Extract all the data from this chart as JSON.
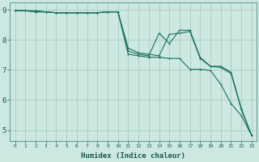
{
  "title": "",
  "xlabel": "Humidex (Indice chaleur)",
  "ylabel": "",
  "background_color": "#cce8e0",
  "grid_color": "#aaccC4",
  "line_color": "#1a7060",
  "xlim": [
    -0.5,
    23.5
  ],
  "ylim": [
    4.65,
    9.25
  ],
  "xticks": [
    0,
    1,
    2,
    3,
    4,
    5,
    6,
    7,
    8,
    9,
    10,
    11,
    12,
    13,
    14,
    15,
    16,
    17,
    18,
    19,
    20,
    21,
    22,
    23
  ],
  "yticks": [
    5,
    6,
    7,
    8,
    9
  ],
  "line1_x": [
    0,
    1,
    2,
    3,
    4,
    5,
    6,
    7,
    8,
    9,
    10,
    11,
    12,
    13,
    14,
    15,
    16,
    17,
    18,
    19,
    20,
    21,
    22,
    23
  ],
  "line1_y": [
    8.97,
    8.97,
    8.93,
    8.93,
    8.9,
    8.9,
    8.9,
    8.9,
    8.9,
    8.93,
    8.93,
    7.52,
    7.47,
    7.42,
    7.42,
    7.38,
    7.38,
    7.02,
    7.02,
    6.98,
    6.52,
    5.88,
    5.48,
    4.82
  ],
  "line2_x": [
    0,
    1,
    2,
    3,
    4,
    5,
    6,
    7,
    8,
    9,
    10,
    11,
    12,
    13,
    14,
    15,
    16,
    17,
    18,
    19,
    20,
    21,
    22,
    23
  ],
  "line2_y": [
    8.97,
    8.97,
    8.93,
    8.93,
    8.9,
    8.9,
    8.9,
    8.9,
    8.9,
    8.93,
    8.93,
    7.62,
    7.52,
    7.47,
    8.22,
    7.88,
    8.32,
    8.32,
    7.42,
    7.12,
    7.12,
    6.92,
    5.72,
    4.82
  ],
  "line3_x": [
    0,
    1,
    2,
    3,
    4,
    5,
    6,
    7,
    8,
    9,
    10,
    11,
    12,
    13,
    14,
    15,
    16,
    17,
    18,
    19,
    20,
    21,
    22,
    23
  ],
  "line3_y": [
    8.97,
    8.97,
    8.97,
    8.93,
    8.9,
    8.9,
    8.9,
    8.9,
    8.9,
    8.93,
    8.93,
    7.72,
    7.57,
    7.52,
    7.47,
    8.18,
    8.22,
    8.28,
    7.38,
    7.12,
    7.08,
    6.88,
    5.68,
    4.82
  ]
}
